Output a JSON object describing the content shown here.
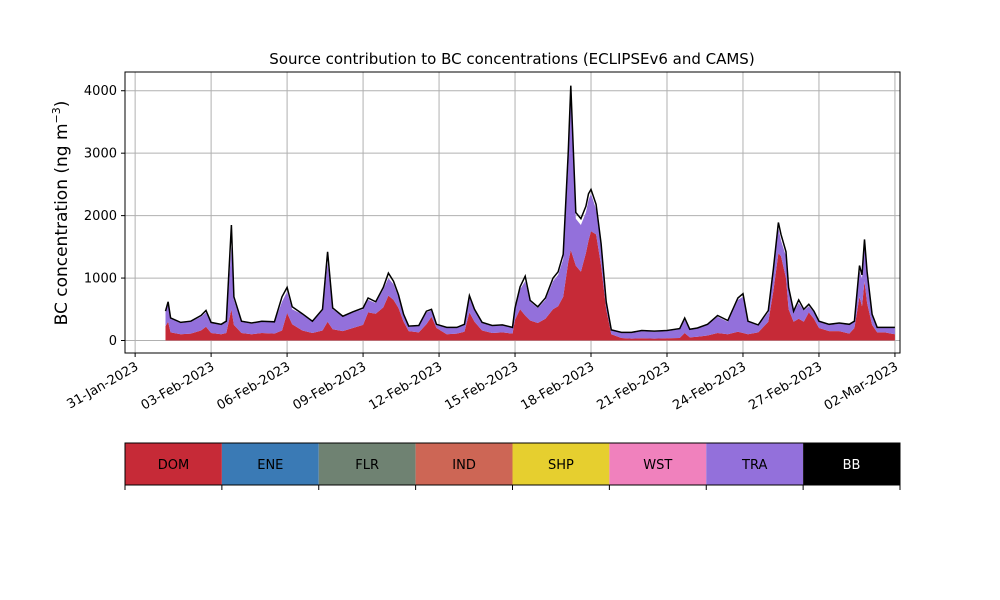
{
  "chart_data": {
    "type": "area",
    "stacked": true,
    "title": "Source contribution to BC concentrations (ECLIPSEv6 and CAMS)",
    "ylabel": "BC concentration (ng m",
    "ylabel_sup": "−3",
    "ylabel_close": ")",
    "ylim": [
      -200,
      4300
    ],
    "yticks": [
      0,
      1000,
      2000,
      3000,
      4000
    ],
    "xlim_days": [
      -0.4,
      30.2
    ],
    "xticks": [
      {
        "day": 0,
        "label": "31-Jan-2023"
      },
      {
        "day": 3,
        "label": "03-Feb-2023"
      },
      {
        "day": 6,
        "label": "06-Feb-2023"
      },
      {
        "day": 9,
        "label": "09-Feb-2023"
      },
      {
        "day": 12,
        "label": "12-Feb-2023"
      },
      {
        "day": 15,
        "label": "15-Feb-2023"
      },
      {
        "day": 18,
        "label": "18-Feb-2023"
      },
      {
        "day": 21,
        "label": "21-Feb-2023"
      },
      {
        "day": 24,
        "label": "24-Feb-2023"
      },
      {
        "day": 27,
        "label": "27-Feb-2023"
      },
      {
        "day": 30,
        "label": "02-Mar-2023"
      }
    ],
    "grid": true,
    "series": [
      {
        "name": "DOM",
        "color": "#c62a37",
        "points": [
          [
            1.2,
            230
          ],
          [
            1.3,
            300
          ],
          [
            1.4,
            130
          ],
          [
            1.8,
            100
          ],
          [
            2.2,
            110
          ],
          [
            2.6,
            160
          ],
          [
            2.8,
            220
          ],
          [
            3.0,
            120
          ],
          [
            3.4,
            100
          ],
          [
            3.6,
            120
          ],
          [
            3.8,
            500
          ],
          [
            3.9,
            250
          ],
          [
            4.2,
            120
          ],
          [
            4.6,
            100
          ],
          [
            5.0,
            120
          ],
          [
            5.5,
            110
          ],
          [
            5.8,
            160
          ],
          [
            6.0,
            440
          ],
          [
            6.2,
            260
          ],
          [
            6.6,
            160
          ],
          [
            7.0,
            120
          ],
          [
            7.4,
            160
          ],
          [
            7.6,
            300
          ],
          [
            7.8,
            180
          ],
          [
            8.2,
            150
          ],
          [
            8.6,
            200
          ],
          [
            9.0,
            250
          ],
          [
            9.2,
            450
          ],
          [
            9.5,
            430
          ],
          [
            9.8,
            530
          ],
          [
            10.0,
            720
          ],
          [
            10.2,
            650
          ],
          [
            10.4,
            520
          ],
          [
            10.6,
            300
          ],
          [
            10.8,
            150
          ],
          [
            11.2,
            130
          ],
          [
            11.5,
            260
          ],
          [
            11.7,
            380
          ],
          [
            11.9,
            200
          ],
          [
            12.3,
            100
          ],
          [
            12.7,
            110
          ],
          [
            13.0,
            140
          ],
          [
            13.2,
            450
          ],
          [
            13.4,
            300
          ],
          [
            13.7,
            160
          ],
          [
            14.1,
            120
          ],
          [
            14.5,
            130
          ],
          [
            14.9,
            110
          ],
          [
            15.0,
            330
          ],
          [
            15.2,
            500
          ],
          [
            15.4,
            400
          ],
          [
            15.6,
            320
          ],
          [
            15.9,
            280
          ],
          [
            16.2,
            350
          ],
          [
            16.5,
            500
          ],
          [
            16.7,
            550
          ],
          [
            16.9,
            700
          ],
          [
            17.1,
            1250
          ],
          [
            17.2,
            1450
          ],
          [
            17.4,
            1200
          ],
          [
            17.6,
            1100
          ],
          [
            17.8,
            1400
          ],
          [
            17.9,
            1600
          ],
          [
            18.0,
            1750
          ],
          [
            18.2,
            1700
          ],
          [
            18.4,
            1200
          ],
          [
            18.6,
            500
          ],
          [
            18.8,
            100
          ],
          [
            19.2,
            40
          ],
          [
            19.6,
            30
          ],
          [
            20.0,
            35
          ],
          [
            20.5,
            30
          ],
          [
            21.0,
            35
          ],
          [
            21.5,
            40
          ],
          [
            21.7,
            120
          ],
          [
            21.9,
            50
          ],
          [
            22.2,
            60
          ],
          [
            22.6,
            80
          ],
          [
            23.0,
            120
          ],
          [
            23.4,
            100
          ],
          [
            23.8,
            140
          ],
          [
            24.0,
            120
          ],
          [
            24.2,
            100
          ],
          [
            24.6,
            130
          ],
          [
            25.0,
            300
          ],
          [
            25.2,
            800
          ],
          [
            25.4,
            1400
          ],
          [
            25.5,
            1350
          ],
          [
            25.7,
            1000
          ],
          [
            25.8,
            500
          ],
          [
            26.0,
            300
          ],
          [
            26.2,
            350
          ],
          [
            26.4,
            300
          ],
          [
            26.6,
            450
          ],
          [
            26.8,
            350
          ],
          [
            27.0,
            200
          ],
          [
            27.4,
            150
          ],
          [
            27.8,
            150
          ],
          [
            28.2,
            110
          ],
          [
            28.4,
            200
          ],
          [
            28.6,
            700
          ],
          [
            28.7,
            550
          ],
          [
            28.8,
            950
          ],
          [
            28.9,
            600
          ],
          [
            29.1,
            250
          ],
          [
            29.3,
            130
          ],
          [
            29.6,
            130
          ],
          [
            30.0,
            100
          ]
        ]
      },
      {
        "name": "TRA",
        "color": "#9370db",
        "points": [
          [
            1.2,
            450
          ],
          [
            1.3,
            580
          ],
          [
            1.4,
            350
          ],
          [
            1.8,
            280
          ],
          [
            2.2,
            300
          ],
          [
            2.6,
            380
          ],
          [
            2.8,
            450
          ],
          [
            3.0,
            280
          ],
          [
            3.4,
            250
          ],
          [
            3.6,
            300
          ],
          [
            3.8,
            1500
          ],
          [
            3.9,
            650
          ],
          [
            4.2,
            300
          ],
          [
            4.6,
            270
          ],
          [
            5.0,
            300
          ],
          [
            5.5,
            290
          ],
          [
            5.8,
            620
          ],
          [
            6.0,
            780
          ],
          [
            6.2,
            500
          ],
          [
            6.6,
            420
          ],
          [
            7.0,
            300
          ],
          [
            7.4,
            480
          ],
          [
            7.6,
            1250
          ],
          [
            7.8,
            500
          ],
          [
            8.2,
            380
          ],
          [
            8.6,
            450
          ],
          [
            9.0,
            500
          ],
          [
            9.2,
            650
          ],
          [
            9.5,
            600
          ],
          [
            9.8,
            820
          ],
          [
            10.0,
            1000
          ],
          [
            10.2,
            900
          ],
          [
            10.4,
            700
          ],
          [
            10.6,
            400
          ],
          [
            10.8,
            220
          ],
          [
            11.2,
            230
          ],
          [
            11.5,
            450
          ],
          [
            11.7,
            480
          ],
          [
            11.9,
            250
          ],
          [
            12.3,
            200
          ],
          [
            12.7,
            200
          ],
          [
            13.0,
            250
          ],
          [
            13.2,
            680
          ],
          [
            13.4,
            480
          ],
          [
            13.7,
            280
          ],
          [
            14.1,
            230
          ],
          [
            14.5,
            240
          ],
          [
            14.9,
            200
          ],
          [
            15.0,
            500
          ],
          [
            15.2,
            820
          ],
          [
            15.4,
            950
          ],
          [
            15.6,
            620
          ],
          [
            15.9,
            520
          ],
          [
            16.2,
            650
          ],
          [
            16.5,
            950
          ],
          [
            16.7,
            1050
          ],
          [
            16.9,
            1300
          ],
          [
            17.1,
            2800
          ],
          [
            17.2,
            3900
          ],
          [
            17.4,
            1950
          ],
          [
            17.6,
            1850
          ],
          [
            17.8,
            2050
          ],
          [
            17.9,
            2250
          ],
          [
            18.0,
            2350
          ],
          [
            18.2,
            2100
          ],
          [
            18.4,
            1500
          ],
          [
            18.6,
            600
          ],
          [
            18.8,
            160
          ],
          [
            19.2,
            120
          ],
          [
            19.6,
            120
          ],
          [
            20.0,
            150
          ],
          [
            20.5,
            140
          ],
          [
            21.0,
            150
          ],
          [
            21.5,
            180
          ],
          [
            21.7,
            330
          ],
          [
            21.9,
            170
          ],
          [
            22.2,
            190
          ],
          [
            22.6,
            250
          ],
          [
            23.0,
            380
          ],
          [
            23.4,
            300
          ],
          [
            23.8,
            650
          ],
          [
            24.0,
            700
          ],
          [
            24.2,
            300
          ],
          [
            24.6,
            240
          ],
          [
            25.0,
            450
          ],
          [
            25.2,
            1100
          ],
          [
            25.4,
            1800
          ],
          [
            25.5,
            1600
          ],
          [
            25.7,
            1350
          ],
          [
            25.8,
            800
          ],
          [
            26.0,
            450
          ],
          [
            26.2,
            600
          ],
          [
            26.4,
            480
          ],
          [
            26.6,
            550
          ],
          [
            26.8,
            450
          ],
          [
            27.0,
            300
          ],
          [
            27.4,
            250
          ],
          [
            27.8,
            270
          ],
          [
            28.2,
            250
          ],
          [
            28.4,
            300
          ],
          [
            28.6,
            1100
          ],
          [
            28.7,
            1000
          ],
          [
            28.8,
            1500
          ],
          [
            28.9,
            1050
          ],
          [
            29.1,
            400
          ],
          [
            29.3,
            200
          ],
          [
            29.6,
            200
          ],
          [
            30.0,
            200
          ]
        ]
      }
    ],
    "total_color": "#000000",
    "total_points": [
      [
        1.2,
        470
      ],
      [
        1.3,
        620
      ],
      [
        1.4,
        360
      ],
      [
        1.8,
        290
      ],
      [
        2.2,
        310
      ],
      [
        2.6,
        400
      ],
      [
        2.8,
        480
      ],
      [
        3.0,
        290
      ],
      [
        3.4,
        260
      ],
      [
        3.6,
        310
      ],
      [
        3.8,
        1850
      ],
      [
        3.9,
        700
      ],
      [
        4.2,
        310
      ],
      [
        4.6,
        280
      ],
      [
        5.0,
        310
      ],
      [
        5.5,
        300
      ],
      [
        5.8,
        700
      ],
      [
        6.0,
        850
      ],
      [
        6.2,
        540
      ],
      [
        6.6,
        430
      ],
      [
        7.0,
        310
      ],
      [
        7.4,
        500
      ],
      [
        7.6,
        1420
      ],
      [
        7.8,
        520
      ],
      [
        8.2,
        390
      ],
      [
        8.6,
        460
      ],
      [
        9.0,
        520
      ],
      [
        9.2,
        680
      ],
      [
        9.5,
        620
      ],
      [
        9.8,
        850
      ],
      [
        10.0,
        1080
      ],
      [
        10.2,
        950
      ],
      [
        10.4,
        730
      ],
      [
        10.6,
        420
      ],
      [
        10.8,
        230
      ],
      [
        11.2,
        240
      ],
      [
        11.5,
        470
      ],
      [
        11.7,
        500
      ],
      [
        11.9,
        260
      ],
      [
        12.3,
        210
      ],
      [
        12.7,
        210
      ],
      [
        13.0,
        260
      ],
      [
        13.2,
        720
      ],
      [
        13.4,
        500
      ],
      [
        13.7,
        290
      ],
      [
        14.1,
        240
      ],
      [
        14.5,
        250
      ],
      [
        14.9,
        210
      ],
      [
        15.0,
        520
      ],
      [
        15.2,
        860
      ],
      [
        15.4,
        1030
      ],
      [
        15.6,
        640
      ],
      [
        15.9,
        540
      ],
      [
        16.2,
        680
      ],
      [
        16.5,
        1000
      ],
      [
        16.7,
        1100
      ],
      [
        16.9,
        1380
      ],
      [
        17.1,
        3000
      ],
      [
        17.2,
        4080
      ],
      [
        17.4,
        2050
      ],
      [
        17.6,
        1950
      ],
      [
        17.8,
        2150
      ],
      [
        17.9,
        2350
      ],
      [
        18.0,
        2420
      ],
      [
        18.2,
        2180
      ],
      [
        18.4,
        1550
      ],
      [
        18.6,
        620
      ],
      [
        18.8,
        170
      ],
      [
        19.2,
        130
      ],
      [
        19.6,
        130
      ],
      [
        20.0,
        160
      ],
      [
        20.5,
        150
      ],
      [
        21.0,
        160
      ],
      [
        21.5,
        190
      ],
      [
        21.7,
        360
      ],
      [
        21.9,
        180
      ],
      [
        22.2,
        200
      ],
      [
        22.6,
        260
      ],
      [
        23.0,
        400
      ],
      [
        23.4,
        320
      ],
      [
        23.8,
        680
      ],
      [
        24.0,
        750
      ],
      [
        24.2,
        310
      ],
      [
        24.6,
        250
      ],
      [
        25.0,
        480
      ],
      [
        25.2,
        1150
      ],
      [
        25.4,
        1890
      ],
      [
        25.5,
        1700
      ],
      [
        25.7,
        1420
      ],
      [
        25.8,
        850
      ],
      [
        26.0,
        470
      ],
      [
        26.2,
        650
      ],
      [
        26.4,
        500
      ],
      [
        26.6,
        580
      ],
      [
        26.8,
        470
      ],
      [
        27.0,
        310
      ],
      [
        27.4,
        260
      ],
      [
        27.8,
        280
      ],
      [
        28.2,
        260
      ],
      [
        28.4,
        310
      ],
      [
        28.6,
        1200
      ],
      [
        28.7,
        1050
      ],
      [
        28.8,
        1620
      ],
      [
        28.9,
        1100
      ],
      [
        29.1,
        420
      ],
      [
        29.3,
        210
      ],
      [
        29.6,
        210
      ],
      [
        30.0,
        210
      ]
    ],
    "legend": [
      {
        "name": "DOM",
        "color": "#c62a37",
        "text_color": "#000000"
      },
      {
        "name": "ENE",
        "color": "#3a7ab5",
        "text_color": "#000000"
      },
      {
        "name": "FLR",
        "color": "#6f8272",
        "text_color": "#000000"
      },
      {
        "name": "IND",
        "color": "#cd6655",
        "text_color": "#000000"
      },
      {
        "name": "SHP",
        "color": "#e6cf2f",
        "text_color": "#000000"
      },
      {
        "name": "WST",
        "color": "#f081bd",
        "text_color": "#000000"
      },
      {
        "name": "TRA",
        "color": "#9370db",
        "text_color": "#000000"
      },
      {
        "name": "BB",
        "color": "#000000",
        "text_color": "#ffffff"
      }
    ]
  }
}
